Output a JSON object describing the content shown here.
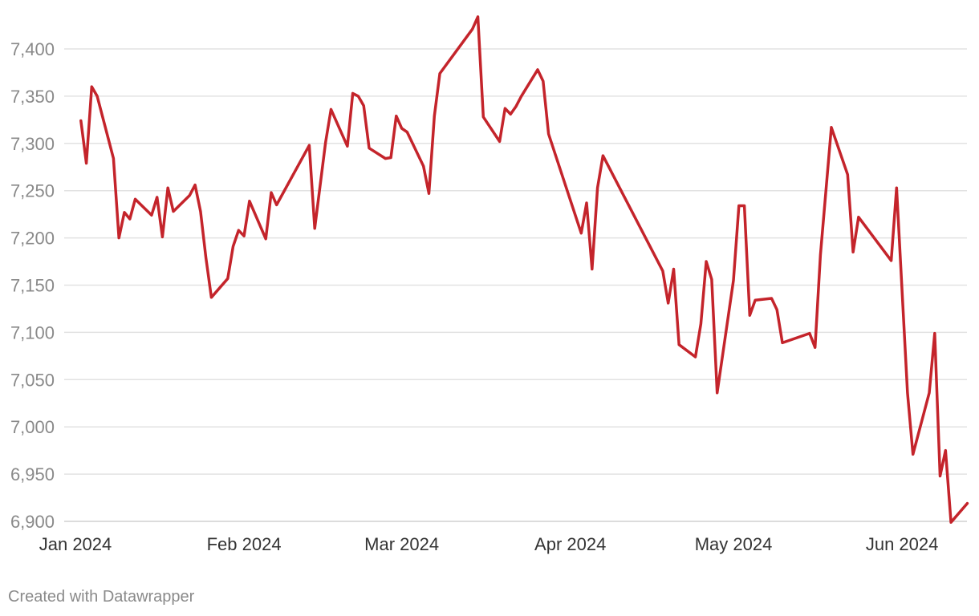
{
  "chart_data": {
    "type": "line",
    "title": "",
    "xlabel": "",
    "ylabel": "",
    "grid": true,
    "legend": "none",
    "ylim": [
      6900,
      7430
    ],
    "xlim": [
      "2024-01-02",
      "2024-06-11"
    ],
    "y_ticks": [
      6900,
      6950,
      7000,
      7050,
      7100,
      7150,
      7200,
      7250,
      7300,
      7350,
      7400
    ],
    "y_tick_labels": [
      "6,900",
      "6,950",
      "7,000",
      "7,050",
      "7,100",
      "7,150",
      "7,200",
      "7,250",
      "7,300",
      "7,350",
      "7,400"
    ],
    "x_ticks": [
      {
        "date": "2024-01-01",
        "label": "Jan 2024"
      },
      {
        "date": "2024-02-01",
        "label": "Feb 2024"
      },
      {
        "date": "2024-03-01",
        "label": "Mar 2024"
      },
      {
        "date": "2024-04-01",
        "label": "Apr 2024"
      },
      {
        "date": "2024-05-01",
        "label": "May 2024"
      },
      {
        "date": "2024-06-01",
        "label": "Jun 2024"
      }
    ],
    "series": [
      {
        "color": "#c4242b",
        "points": [
          [
            "2024-01-02",
            7324
          ],
          [
            "2024-01-03",
            7279
          ],
          [
            "2024-01-04",
            7360
          ],
          [
            "2024-01-05",
            7350
          ],
          [
            "2024-01-08",
            7284
          ],
          [
            "2024-01-09",
            7200
          ],
          [
            "2024-01-10",
            7227
          ],
          [
            "2024-01-11",
            7220
          ],
          [
            "2024-01-12",
            7241
          ],
          [
            "2024-01-15",
            7224
          ],
          [
            "2024-01-16",
            7243
          ],
          [
            "2024-01-17",
            7201
          ],
          [
            "2024-01-18",
            7253
          ],
          [
            "2024-01-19",
            7228
          ],
          [
            "2024-01-22",
            7245
          ],
          [
            "2024-01-23",
            7256
          ],
          [
            "2024-01-24",
            7228
          ],
          [
            "2024-01-25",
            7179
          ],
          [
            "2024-01-26",
            7137
          ],
          [
            "2024-01-29",
            7157
          ],
          [
            "2024-01-30",
            7191
          ],
          [
            "2024-01-31",
            7208
          ],
          [
            "2024-02-01",
            7202
          ],
          [
            "2024-02-02",
            7239
          ],
          [
            "2024-02-05",
            7199
          ],
          [
            "2024-02-06",
            7248
          ],
          [
            "2024-02-07",
            7235
          ],
          [
            "2024-02-13",
            7298
          ],
          [
            "2024-02-14",
            7210
          ],
          [
            "2024-02-16",
            7301
          ],
          [
            "2024-02-17",
            7336
          ],
          [
            "2024-02-20",
            7297
          ],
          [
            "2024-02-21",
            7353
          ],
          [
            "2024-02-22",
            7350
          ],
          [
            "2024-02-23",
            7340
          ],
          [
            "2024-02-24",
            7295
          ],
          [
            "2024-02-27",
            7284
          ],
          [
            "2024-02-28",
            7285
          ],
          [
            "2024-02-29",
            7329
          ],
          [
            "2024-03-01",
            7316
          ],
          [
            "2024-03-02",
            7312
          ],
          [
            "2024-03-05",
            7276
          ],
          [
            "2024-03-06",
            7247
          ],
          [
            "2024-03-07",
            7329
          ],
          [
            "2024-03-08",
            7374
          ],
          [
            "2024-03-14",
            7421
          ],
          [
            "2024-03-15",
            7434
          ],
          [
            "2024-03-16",
            7328
          ],
          [
            "2024-03-19",
            7302
          ],
          [
            "2024-03-20",
            7337
          ],
          [
            "2024-03-21",
            7331
          ],
          [
            "2024-03-22",
            7339
          ],
          [
            "2024-03-23",
            7350
          ],
          [
            "2024-03-26",
            7378
          ],
          [
            "2024-03-27",
            7366
          ],
          [
            "2024-03-28",
            7310
          ],
          [
            "2024-04-03",
            7205
          ],
          [
            "2024-04-04",
            7237
          ],
          [
            "2024-04-05",
            7167
          ],
          [
            "2024-04-06",
            7253
          ],
          [
            "2024-04-07",
            7287
          ],
          [
            "2024-04-18",
            7165
          ],
          [
            "2024-04-19",
            7131
          ],
          [
            "2024-04-20",
            7167
          ],
          [
            "2024-04-21",
            7087
          ],
          [
            "2024-04-24",
            7074
          ],
          [
            "2024-04-25",
            7109
          ],
          [
            "2024-04-26",
            7175
          ],
          [
            "2024-04-27",
            7156
          ],
          [
            "2024-04-28",
            7036
          ],
          [
            "2024-05-01",
            7155
          ],
          [
            "2024-05-02",
            7234
          ],
          [
            "2024-05-03",
            7234
          ],
          [
            "2024-05-04",
            7118
          ],
          [
            "2024-05-05",
            7134
          ],
          [
            "2024-05-08",
            7136
          ],
          [
            "2024-05-09",
            7124
          ],
          [
            "2024-05-10",
            7089
          ],
          [
            "2024-05-15",
            7099
          ],
          [
            "2024-05-16",
            7084
          ],
          [
            "2024-05-17",
            7182
          ],
          [
            "2024-05-19",
            7317
          ],
          [
            "2024-05-22",
            7267
          ],
          [
            "2024-05-23",
            7185
          ],
          [
            "2024-05-24",
            7222
          ],
          [
            "2024-05-30",
            7176
          ],
          [
            "2024-05-31",
            7253
          ],
          [
            "2024-06-02",
            7036
          ],
          [
            "2024-06-03",
            6971
          ],
          [
            "2024-06-06",
            7036
          ],
          [
            "2024-06-07",
            7099
          ],
          [
            "2024-06-08",
            6948
          ],
          [
            "2024-06-09",
            6975
          ],
          [
            "2024-06-10",
            6899
          ],
          [
            "2024-06-13",
            6919
          ]
        ]
      }
    ]
  },
  "footer": {
    "credit": "Created with Datawrapper"
  }
}
